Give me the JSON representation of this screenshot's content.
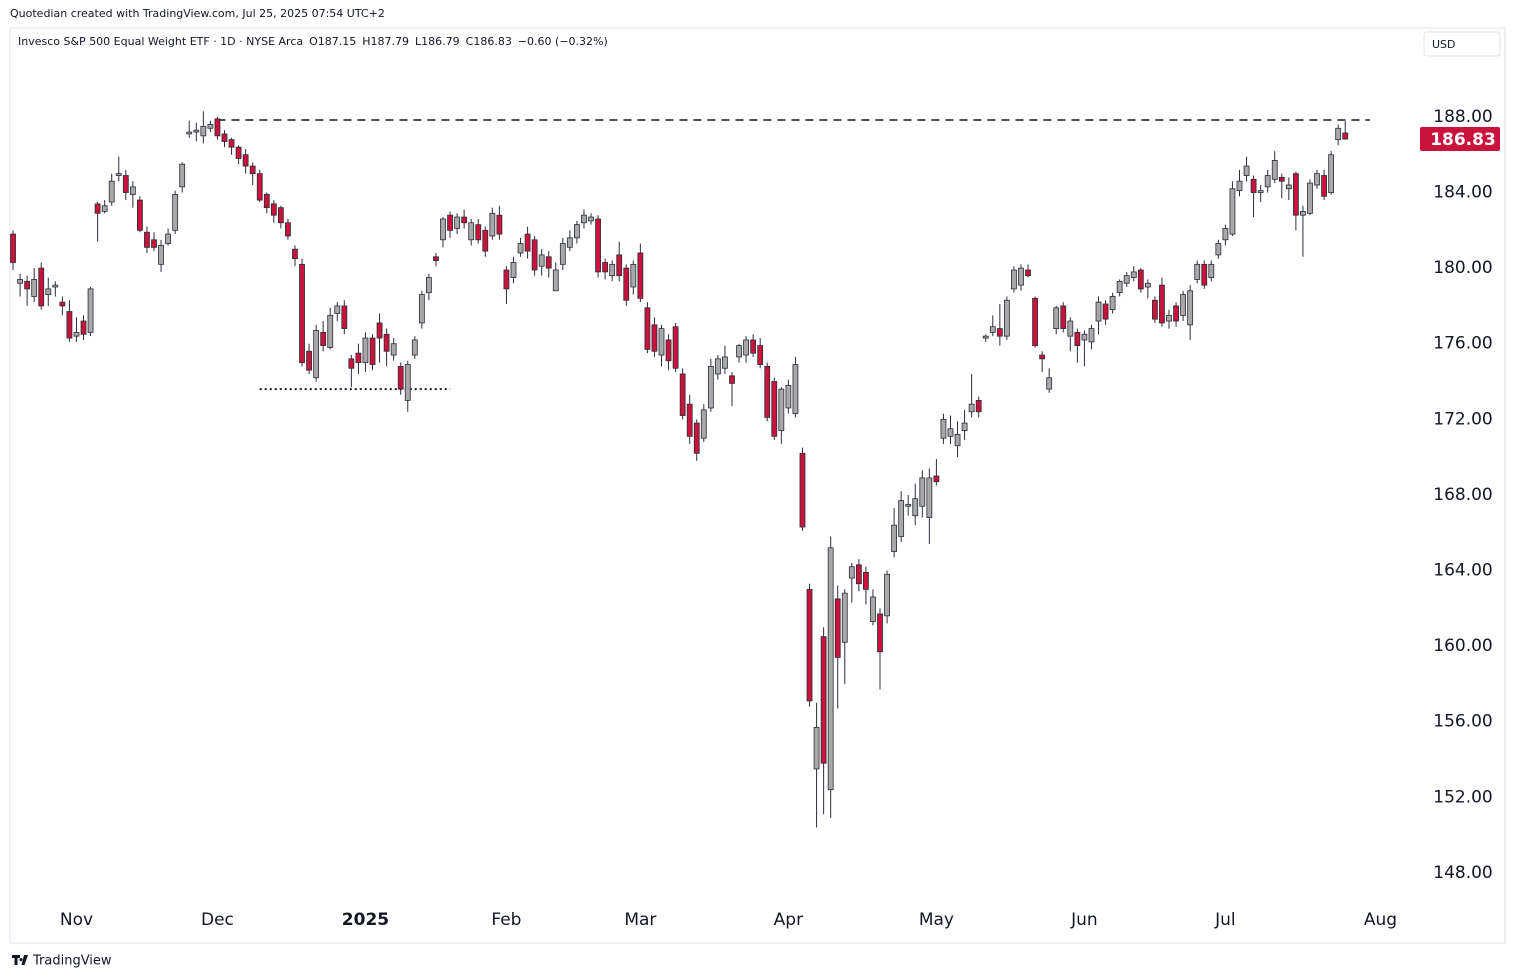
{
  "header": {
    "credit": "Quotedian created with TradingView.com, Jul 25, 2025 07:54 UTC+2",
    "currency": "USD",
    "footer": "TradingView"
  },
  "chart_data": {
    "type": "candlestick",
    "title": "Invesco S&P 500 Equal Weight ETF · 1D · NYSE Arca",
    "ohlc_labels": [
      "O187.15",
      "H187.79",
      "L186.79",
      "C186.83",
      "−0.60 (−0.32%)"
    ],
    "up_color": "#a8a8a8",
    "down_color": "#c8143c",
    "candles": [
      [
        181.8,
        182,
        179.9,
        180.3
      ],
      [
        179.2,
        179.7,
        178.5,
        179.4
      ],
      [
        179.3,
        179.6,
        178.0,
        178.9
      ],
      [
        178.5,
        180,
        178.2,
        179.4
      ],
      [
        180,
        180.3,
        177.8,
        178
      ],
      [
        178.6,
        179.5,
        178,
        178.9
      ],
      [
        179,
        179.3,
        178.5,
        179.1
      ],
      [
        178.2,
        178.5,
        177.5,
        178.0
      ],
      [
        177.7,
        178.3,
        176.1,
        176.3
      ],
      [
        176.4,
        177.4,
        176.1,
        176.6
      ],
      [
        177.2,
        177.5,
        176.2,
        176.5
      ],
      [
        176.6,
        179,
        176.4,
        178.9
      ],
      [
        183.4,
        183.5,
        181.4,
        182.9
      ],
      [
        183,
        183.6,
        182.9,
        183.3
      ],
      [
        183.5,
        185,
        183.3,
        184.6
      ],
      [
        184.9,
        185.9,
        184.6,
        185.0
      ],
      [
        184.9,
        185.2,
        183.6,
        184.0
      ],
      [
        183.9,
        184.6,
        183.2,
        184.3
      ],
      [
        183.6,
        183.8,
        181.9,
        182.0
      ],
      [
        181.9,
        182.2,
        180.8,
        181.1
      ],
      [
        181.5,
        181.9,
        180.9,
        181.1
      ],
      [
        180.2,
        181.5,
        179.8,
        181.2
      ],
      [
        181.3,
        182.1,
        181.2,
        181.8
      ],
      [
        182,
        184.1,
        181.8,
        183.9
      ],
      [
        184.3,
        185.6,
        184,
        185.5
      ],
      [
        187.1,
        187.8,
        186.9,
        187.2
      ],
      [
        187.2,
        187.7,
        186.7,
        187.3
      ],
      [
        187.0,
        188.3,
        186.6,
        187.5
      ],
      [
        187.4,
        187.8,
        187.2,
        187.6
      ],
      [
        187.9,
        188.0,
        186.8,
        187.0
      ],
      [
        187.1,
        187.3,
        186.4,
        186.7
      ],
      [
        186.8,
        186.9,
        186.0,
        186.4
      ],
      [
        186.4,
        186.5,
        185.5,
        185.8
      ],
      [
        186,
        186.3,
        185.0,
        185.4
      ],
      [
        185.4,
        185.6,
        184.4,
        185.0
      ],
      [
        185.0,
        185.2,
        183.5,
        183.6
      ],
      [
        183.9,
        184.0,
        182.9,
        183.2
      ],
      [
        183.4,
        183.6,
        182.4,
        182.8
      ],
      [
        183.2,
        183.3,
        182.1,
        182.4
      ],
      [
        182.4,
        182.6,
        181.5,
        181.7
      ],
      [
        181,
        181.2,
        180.1,
        180.5
      ],
      [
        180.2,
        180.5,
        174.8,
        175.0
      ],
      [
        175.6,
        176.0,
        174.4,
        174.6
      ],
      [
        174.2,
        177.0,
        174.0,
        176.7
      ],
      [
        176.6,
        177.2,
        175.6,
        175.9
      ],
      [
        175.8,
        177.9,
        175.7,
        177.5
      ],
      [
        177.6,
        178.2,
        177.2,
        178.0
      ],
      [
        178,
        178.3,
        176.5,
        176.8
      ],
      [
        175.2,
        175.4,
        173.7,
        174.7
      ],
      [
        175.5,
        176.0,
        174.4,
        175.0
      ],
      [
        175.0,
        176.6,
        174.5,
        176.3
      ],
      [
        176.3,
        176.5,
        174.6,
        174.9
      ],
      [
        177.1,
        177.6,
        175,
        176.3
      ],
      [
        176.5,
        176.8,
        174.8,
        175.6
      ],
      [
        175.4,
        176.3,
        175.1,
        176.0
      ],
      [
        174.8,
        175,
        173.3,
        173.6
      ],
      [
        173,
        175.1,
        172.4,
        174.9
      ],
      [
        175.4,
        176.4,
        175.2,
        176.2
      ],
      [
        177.1,
        178.8,
        176.8,
        178.6
      ],
      [
        178.7,
        179.7,
        178.3,
        179.5
      ],
      [
        180.6,
        180.8,
        180.1,
        180.4
      ],
      [
        181.5,
        182.7,
        181.1,
        182.6
      ],
      [
        182.8,
        183.0,
        181.6,
        182.0
      ],
      [
        182.1,
        182.9,
        181.8,
        182.7
      ],
      [
        182.7,
        183.1,
        182.1,
        182.4
      ],
      [
        181.5,
        182.6,
        181.2,
        182.4
      ],
      [
        182.3,
        182.6,
        181.3,
        181.5
      ],
      [
        182.0,
        182.2,
        180.6,
        180.9
      ],
      [
        181.7,
        183.2,
        181.5,
        182.9
      ],
      [
        182.8,
        183.3,
        181.5,
        181.8
      ],
      [
        179.9,
        180.1,
        178.1,
        178.9
      ],
      [
        179.5,
        180.6,
        179.2,
        180.3
      ],
      [
        180.8,
        181.6,
        180.6,
        181.3
      ],
      [
        181.8,
        182.2,
        180.5,
        180.9
      ],
      [
        181.5,
        181.7,
        179.6,
        179.9
      ],
      [
        180.1,
        181.0,
        179.6,
        180.7
      ],
      [
        180.6,
        180.9,
        179.5,
        180.0
      ],
      [
        178.8,
        180.3,
        178.8,
        179.9
      ],
      [
        180.2,
        181.6,
        179.9,
        181.3
      ],
      [
        181.1,
        182.0,
        180.9,
        181.6
      ],
      [
        181.6,
        182.5,
        181.3,
        182.3
      ],
      [
        182.4,
        183.1,
        182.1,
        182.8
      ],
      [
        182.5,
        182.9,
        182.3,
        182.7
      ],
      [
        182.6,
        182.8,
        179.5,
        179.8
      ],
      [
        180.3,
        180.5,
        179.4,
        179.8
      ],
      [
        179.6,
        180.4,
        179.3,
        180.2
      ],
      [
        180.7,
        181.4,
        179.3,
        179.6
      ],
      [
        180.0,
        180.2,
        178.0,
        178.3
      ],
      [
        179.0,
        180.4,
        178.6,
        180.2
      ],
      [
        180.8,
        181.3,
        178.2,
        178.4
      ],
      [
        177.9,
        178.2,
        175.5,
        175.7
      ],
      [
        177.0,
        177.4,
        175.3,
        175.6
      ],
      [
        175.4,
        177.0,
        174.8,
        176.8
      ],
      [
        176.2,
        176.5,
        174.6,
        175.1
      ],
      [
        176.9,
        177.1,
        174.5,
        174.7
      ],
      [
        174.4,
        174.7,
        172.0,
        172.2
      ],
      [
        172.8,
        173.3,
        170.7,
        171.1
      ],
      [
        171.8,
        172.0,
        169.8,
        170.2
      ],
      [
        171.0,
        172.8,
        170.8,
        172.5
      ],
      [
        172.6,
        175.2,
        172.4,
        174.8
      ],
      [
        174.4,
        175.4,
        174.1,
        175.2
      ],
      [
        174.7,
        175.9,
        174.4,
        175.3
      ],
      [
        174.3,
        174.5,
        172.7,
        173.9
      ],
      [
        175.3,
        176.0,
        175.0,
        175.9
      ],
      [
        175.4,
        176.4,
        175.0,
        176.2
      ],
      [
        176.2,
        176.5,
        175.3,
        175.5
      ],
      [
        175.9,
        176.3,
        174.7,
        174.9
      ],
      [
        174.8,
        175.0,
        171.9,
        172.1
      ],
      [
        174.0,
        174.2,
        170.9,
        171.1
      ],
      [
        171.4,
        173.7,
        170.7,
        173.6
      ],
      [
        172.6,
        174.1,
        172.3,
        173.8
      ],
      [
        172.3,
        175.3,
        172.1,
        174.9
      ],
      [
        170.2,
        170.5,
        166.1,
        166.3
      ],
      [
        163.0,
        163.3,
        156.8,
        157.1
      ],
      [
        153.5,
        157,
        150.4,
        155.7
      ],
      [
        160.5,
        161.0,
        151.1,
        153.8
      ],
      [
        152.4,
        165.8,
        150.9,
        165.2
      ],
      [
        162.5,
        163.2,
        156.7,
        159.4
      ],
      [
        160.2,
        163.0,
        158.0,
        162.8
      ],
      [
        163.6,
        164.4,
        162.3,
        164.2
      ],
      [
        164.3,
        164.6,
        162.9,
        163.3
      ],
      [
        163.9,
        164.2,
        162.2,
        163.0
      ],
      [
        161.3,
        163.0,
        161.1,
        162.6
      ],
      [
        161.7,
        162.0,
        157.7,
        159.7
      ],
      [
        161.6,
        164.0,
        161.2,
        163.8
      ],
      [
        165.0,
        167.3,
        164.7,
        166.4
      ],
      [
        165.8,
        168.2,
        165.5,
        167.7
      ],
      [
        167.4,
        168.0,
        166.9,
        167.5
      ],
      [
        166.9,
        168.6,
        166.4,
        167.8
      ],
      [
        167.4,
        169.3,
        166.8,
        168.9
      ],
      [
        166.8,
        169.4,
        165.4,
        168.9
      ],
      [
        169.0,
        169.9,
        168.5,
        168.7
      ],
      [
        171.0,
        172.3,
        170.7,
        172.0
      ],
      [
        171.1,
        172.2,
        170.7,
        171.5
      ],
      [
        170.6,
        171.9,
        170.0,
        171.2
      ],
      [
        171.4,
        172.5,
        170.9,
        171.8
      ],
      [
        172.4,
        174.4,
        172.1,
        172.8
      ],
      [
        173.0,
        173.2,
        172.1,
        172.4
      ],
      [
        176.3,
        176.5,
        176.1,
        176.4
      ],
      [
        176.6,
        177.5,
        176.4,
        176.9
      ],
      [
        176.8,
        178.1,
        175.9,
        176.4
      ],
      [
        176.4,
        178.5,
        176.2,
        178.3
      ],
      [
        178.9,
        180.1,
        178.7,
        179.9
      ],
      [
        179.1,
        180.2,
        178.8,
        180.0
      ],
      [
        179.9,
        180.2,
        179.5,
        179.6
      ],
      [
        178.4,
        178.5,
        175.8,
        175.9
      ],
      [
        175.4,
        175.6,
        174.5,
        175.2
      ],
      [
        173.6,
        174.7,
        173.4,
        174.2
      ],
      [
        176.8,
        178.0,
        176.5,
        177.9
      ],
      [
        178.0,
        178.2,
        176.6,
        176.8
      ],
      [
        176.4,
        177.4,
        175.6,
        177.2
      ],
      [
        176.6,
        176.8,
        175.0,
        175.9
      ],
      [
        176.2,
        176.7,
        174.8,
        176.5
      ],
      [
        176.1,
        177.0,
        175.7,
        176.8
      ],
      [
        177.2,
        178.5,
        176.5,
        178.2
      ],
      [
        178.1,
        178.3,
        177.0,
        177.3
      ],
      [
        177.8,
        178.7,
        177.6,
        178.5
      ],
      [
        178.7,
        179.4,
        178.5,
        179.3
      ],
      [
        179.2,
        179.8,
        179.0,
        179.6
      ],
      [
        179.5,
        180.1,
        179.3,
        179.8
      ],
      [
        179.9,
        180.0,
        178.7,
        178.9
      ],
      [
        179.0,
        179.4,
        178.4,
        179.2
      ],
      [
        178.3,
        178.5,
        177.1,
        177.3
      ],
      [
        179.1,
        179.5,
        176.9,
        177.1
      ],
      [
        177.2,
        177.8,
        176.8,
        177.5
      ],
      [
        178,
        178.2,
        176.9,
        177.2
      ],
      [
        177.5,
        178.8,
        177.2,
        178.6
      ],
      [
        177.0,
        179.1,
        176.2,
        178.8
      ],
      [
        179.4,
        180.4,
        179.2,
        180.2
      ],
      [
        180.2,
        180.4,
        178.9,
        179.1
      ],
      [
        179.5,
        180.4,
        179.3,
        180.2
      ],
      [
        180.7,
        181.5,
        180.5,
        181.3
      ],
      [
        181.5,
        182.3,
        181.2,
        182.1
      ],
      [
        181.8,
        184.6,
        181.7,
        184.2
      ],
      [
        184.1,
        185.2,
        183.8,
        184.6
      ],
      [
        184.9,
        185.9,
        184.6,
        185.4
      ],
      [
        184.7,
        184.9,
        182.7,
        184.0
      ],
      [
        184.0,
        184.4,
        183.5,
        184.1
      ],
      [
        184.3,
        185.2,
        184.0,
        184.9
      ],
      [
        184.7,
        186.2,
        184.5,
        185.7
      ],
      [
        184.8,
        185.0,
        183.7,
        184.6
      ],
      [
        184.2,
        184.8,
        183.6,
        184.4
      ],
      [
        185.0,
        185.1,
        182.0,
        182.8
      ],
      [
        182.8,
        183.3,
        180.6,
        183.0
      ],
      [
        182.9,
        184.7,
        182.8,
        184.5
      ],
      [
        184.4,
        185.2,
        184.2,
        185.0
      ],
      [
        184.9,
        185.2,
        183.6,
        183.8
      ],
      [
        184.0,
        186.2,
        183.9,
        186.0
      ],
      [
        186.8,
        187.6,
        186.5,
        187.4
      ],
      [
        187.15,
        187.79,
        186.79,
        186.83
      ]
    ],
    "last_price_label": "186.83",
    "annotations": [
      {
        "style": "dashed",
        "value": 187.84,
        "from": 29,
        "to": 192.5
      },
      {
        "style": "dotted",
        "value": 173.6,
        "from": 35,
        "to": 62
      }
    ],
    "xlim": [
      -0.43,
      198.9
    ],
    "xticks": [
      {
        "value": 9,
        "label": "Nov"
      },
      {
        "value": 29,
        "label": "Dec"
      },
      {
        "value": 50,
        "label": "2025"
      },
      {
        "value": 70,
        "label": "Feb"
      },
      {
        "value": 89,
        "label": "Mar"
      },
      {
        "value": 110,
        "label": "Apr"
      },
      {
        "value": 131,
        "label": "May"
      },
      {
        "value": 152,
        "label": "Jun"
      },
      {
        "value": 172,
        "label": "Jul"
      },
      {
        "value": 194,
        "label": "Aug"
      }
    ],
    "ylim": [
      146.3,
      192.6
    ],
    "yticks": [
      {
        "value": 148,
        "label": "148.00"
      },
      {
        "value": 152,
        "label": "152.00"
      },
      {
        "value": 156,
        "label": "156.00"
      },
      {
        "value": 160,
        "label": "160.00"
      },
      {
        "value": 164,
        "label": "164.00"
      },
      {
        "value": 168,
        "label": "168.00"
      },
      {
        "value": 172,
        "label": "172.00"
      },
      {
        "value": 176,
        "label": "176.00"
      },
      {
        "value": 180,
        "label": "180.00"
      },
      {
        "value": 184,
        "label": "184.00"
      },
      {
        "value": 188,
        "label": "188.00"
      }
    ],
    "grid": false
  }
}
